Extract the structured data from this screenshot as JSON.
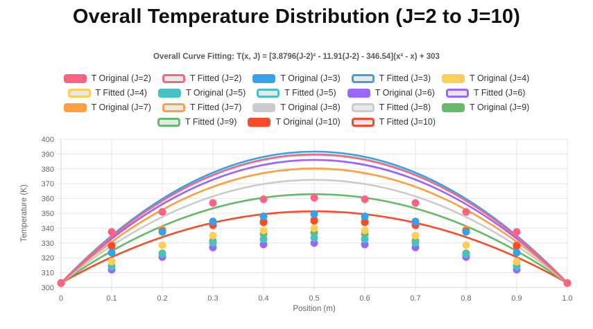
{
  "chart_data": {
    "type": "line",
    "title": "Overall Temperature Distribution (J=2 to J=10)",
    "subtitle": "Overall Curve Fitting: T(x, J) = [3.8796(J-2)² - 11.91(J-2) - 346.54](x² - x) + 303",
    "xlabel": "Position (m)",
    "ylabel": "Temperature (K)",
    "xlim": [
      0,
      1.0
    ],
    "ylim": [
      300,
      400
    ],
    "xtick_step": 0.1,
    "ytick_step": 10,
    "grid": true,
    "legend_position": "top",
    "x": [
      0,
      0.1,
      0.2,
      0.3,
      0.4,
      0.5,
      0.6,
      0.7,
      0.8,
      0.9,
      1.0
    ],
    "original_series": [
      {
        "name": "T Original (J=2)",
        "color": "#FF6384",
        "values": [
          303,
          337.5,
          351,
          357,
          359.5,
          360.5,
          359.5,
          357,
          351,
          337.5,
          303
        ]
      },
      {
        "name": "T Original (J=3)",
        "color": "#36A2EB",
        "values": [
          303,
          323.5,
          337.5,
          344.5,
          348,
          349.5,
          348,
          344.5,
          337.5,
          323.5,
          303
        ]
      },
      {
        "name": "T Original (J=4)",
        "color": "#FFCE56",
        "values": [
          303,
          317.5,
          328.5,
          335,
          338.5,
          340,
          338.5,
          335,
          328.5,
          317.5,
          303
        ]
      },
      {
        "name": "T Original (J=5)",
        "color": "#4BC0C0",
        "values": [
          303,
          314,
          322.5,
          330,
          332.5,
          333.5,
          332.5,
          330,
          322.5,
          314,
          303
        ]
      },
      {
        "name": "T Original (J=6)",
        "color": "#9966FF",
        "values": [
          303,
          312,
          320.5,
          327,
          329,
          330,
          329,
          327,
          320.5,
          312,
          303
        ]
      },
      {
        "name": "T Original (J=7)",
        "color": "#FF9F40",
        "values": [
          303,
          329,
          339,
          343,
          345,
          346,
          345,
          343,
          339,
          329,
          303
        ]
      },
      {
        "name": "T Original (J=8)",
        "color": "#C9CBCF",
        "values": [
          303,
          328,
          338,
          342,
          344,
          345,
          344,
          342,
          338,
          328,
          303
        ]
      },
      {
        "name": "T Original (J=9)",
        "color": "#66BB6A",
        "values": [
          303,
          314.5,
          323,
          331.5,
          336,
          337,
          336,
          331.5,
          323,
          314.5,
          303
        ]
      },
      {
        "name": "T Original (J=10)",
        "color": "#FA4B28",
        "values": [
          303,
          328,
          338,
          342,
          344,
          345,
          344,
          342,
          338,
          328,
          303
        ]
      }
    ],
    "fitted_series": [
      {
        "name": "T Fitted (J=2)",
        "color": "#FF6384",
        "coefficient": -346.54
      },
      {
        "name": "T Fitted (J=3)",
        "color": "#36A2EB",
        "coefficient": -354.57
      },
      {
        "name": "T Fitted (J=4)",
        "color": "#FFCE56",
        "coefficient": -354.84
      },
      {
        "name": "T Fitted (J=5)",
        "color": "#4BC0C0",
        "coefficient": -347.35
      },
      {
        "name": "T Fitted (J=6)",
        "color": "#9966FF",
        "coefficient": -332.11
      },
      {
        "name": "T Fitted (J=7)",
        "color": "#FF9F40",
        "coefficient": -309.1
      },
      {
        "name": "T Fitted (J=8)",
        "color": "#C9CBCF",
        "coefficient": -278.33
      },
      {
        "name": "T Fitted (J=9)",
        "color": "#66BB6A",
        "coefficient": -239.81
      },
      {
        "name": "T Fitted (J=10)",
        "color": "#FA4B28",
        "coefficient": -193.53
      }
    ],
    "fit_base_temperature": 303,
    "colors": {
      "grid": "#E5E5E5",
      "axis_border": "#D5D5D5",
      "tick_text": "#666666",
      "axis_title_text": "#666666",
      "fitted_swatch_fill": "#E8E8E8",
      "legend_text": "#333333",
      "title_text": "#111111",
      "subtitle_text": "#595959"
    }
  }
}
